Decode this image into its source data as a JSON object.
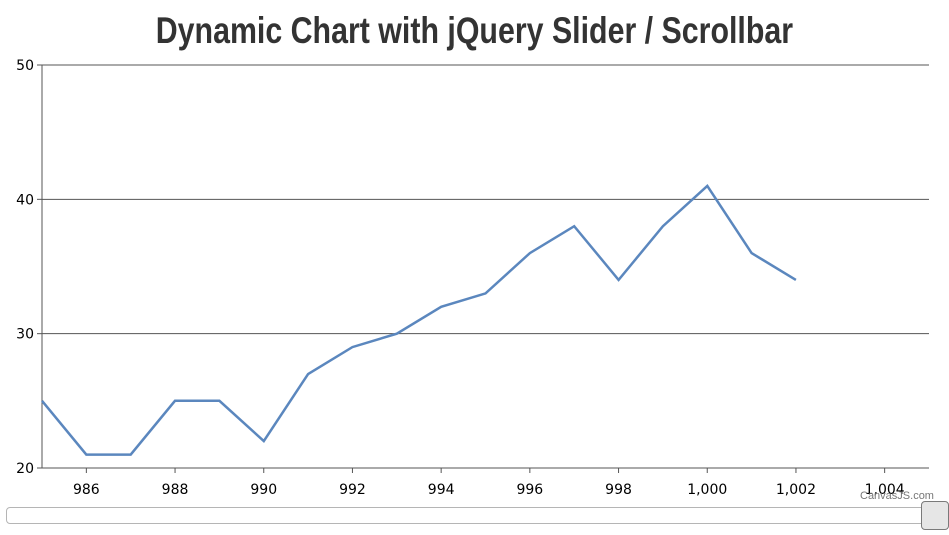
{
  "chart_data": {
    "type": "line",
    "title": "Dynamic Chart with jQuery Slider / Scrollbar",
    "x": [
      985,
      986,
      987,
      988,
      989,
      990,
      991,
      992,
      993,
      994,
      995,
      996,
      997,
      998,
      999,
      1000,
      1001,
      1002
    ],
    "series": [
      {
        "values": [
          25,
          21,
          21,
          25,
          25,
          22,
          27,
          29,
          30,
          32,
          33,
          36,
          38,
          34,
          38,
          41,
          36,
          34
        ],
        "color": "#5b87be"
      }
    ],
    "xlim": [
      985,
      1005
    ],
    "ylim": [
      20,
      50
    ],
    "x_ticks": [
      986,
      988,
      990,
      992,
      994,
      996,
      998,
      1000,
      1002,
      1004
    ],
    "x_tick_labels": [
      "986",
      "988",
      "990",
      "992",
      "994",
      "996",
      "998",
      "1,000",
      "1,002",
      "1,004"
    ],
    "y_ticks": [
      20,
      30,
      40,
      50
    ],
    "y_tick_labels": [
      "20",
      "30",
      "40",
      "50"
    ],
    "grid": "horizontal"
  },
  "credit": "CanvasJS.com",
  "slider": {
    "value": 1.0
  }
}
